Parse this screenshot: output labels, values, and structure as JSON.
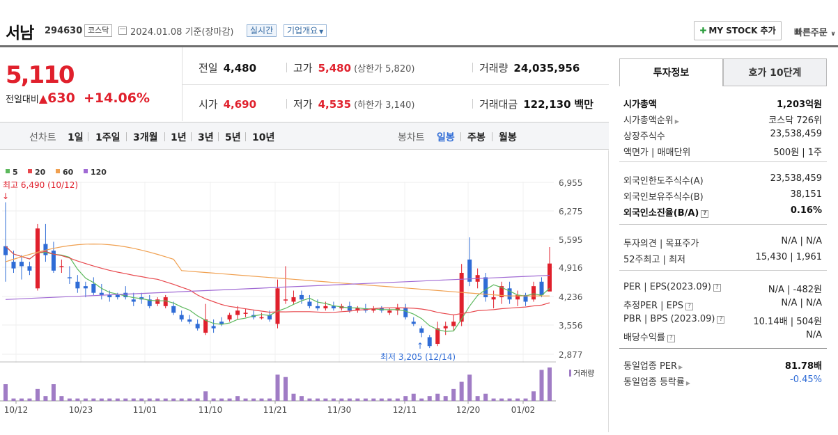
{
  "header": {
    "stock_name": "서남",
    "stock_code": "294630",
    "market": "코스닥",
    "date_text": "2024.01.08  기준(장마감)",
    "realtime_label": "실시간",
    "company_label": "기업개요",
    "mystock_label": "MY STOCK 추가",
    "quick_order_label": "빠른주문"
  },
  "price": {
    "current": "5,110",
    "change_label": "전일대비",
    "change_value": "630",
    "change_pct": "+14.06%"
  },
  "stats": {
    "prev_label": "전일",
    "prev_value": "4,480",
    "high_label": "고가",
    "high_value": "5,480",
    "upper_limit": "(상한가 5,820)",
    "volume_label": "거래량",
    "volume_value": "24,035,956",
    "open_label": "시가",
    "open_value": "4,690",
    "low_label": "저가",
    "low_value": "4,535",
    "lower_limit": "(하한가 3,140)",
    "amount_label": "거래대금",
    "amount_value": "122,130",
    "amount_unit": "백만"
  },
  "period_bar": {
    "line_title": "선차트",
    "line_opts": [
      "1일",
      "1주일",
      "3개월",
      "1년",
      "3년",
      "5년",
      "10년"
    ],
    "candle_title": "봉차트",
    "candle_opts": [
      "일봉",
      "주봉",
      "월봉"
    ],
    "candle_selected": "일봉"
  },
  "chart_data": {
    "type": "candlestick",
    "legend": [
      {
        "name": "5",
        "color": "#5cb85c"
      },
      {
        "name": "20",
        "color": "#e8484d"
      },
      {
        "name": "60",
        "color": "#f0a050"
      },
      {
        "name": "120",
        "color": "#a06ad4"
      }
    ],
    "y_ticks": [
      "6,955",
      "6,275",
      "5,595",
      "4,916",
      "4,236",
      "3,556",
      "2,877"
    ],
    "x_ticks": [
      "10/12",
      "10/23",
      "11/01",
      "11/10",
      "11/21",
      "11/30",
      "12/11",
      "12/20",
      "01/02"
    ],
    "high_annotation": "최고 6,490 (10/12)",
    "low_annotation": "최저 3,205 (12/14)",
    "volume_label": "거래량",
    "up_color": "#e0202c",
    "down_color": "#2f6cd6",
    "candles": [
      [
        5300,
        6490,
        5500,
        4700,
        "down"
      ],
      [
        5000,
        5400,
        5150,
        4900,
        "down"
      ],
      [
        5050,
        5300,
        5150,
        4750,
        "down"
      ],
      [
        4950,
        5150,
        5050,
        4850,
        "down"
      ],
      [
        4550,
        6000,
        5900,
        4500,
        "up"
      ],
      [
        5300,
        6000,
        5550,
        5150,
        "down"
      ],
      [
        5400,
        5600,
        4950,
        4900,
        "down"
      ],
      [
        5050,
        5200,
        5050,
        4900,
        "up"
      ],
      [
        4800,
        5050,
        4800,
        4650,
        "down"
      ],
      [
        4700,
        4850,
        4550,
        4450,
        "down"
      ],
      [
        4600,
        4700,
        4550,
        4350,
        "down"
      ],
      [
        4650,
        4800,
        4450,
        4400,
        "down"
      ],
      [
        4450,
        4650,
        4400,
        4300,
        "down"
      ],
      [
        4400,
        4500,
        4350,
        4250,
        "down"
      ],
      [
        4400,
        4450,
        4350,
        4300,
        "down"
      ],
      [
        4450,
        4600,
        4350,
        4300,
        "down"
      ],
      [
        4300,
        4450,
        4250,
        4150,
        "down"
      ],
      [
        4350,
        4450,
        4300,
        4200,
        "down"
      ],
      [
        4300,
        4400,
        4150,
        4100,
        "down"
      ],
      [
        4200,
        4350,
        4300,
        4150,
        "up"
      ],
      [
        4150,
        4400,
        4350,
        4100,
        "up"
      ],
      [
        4150,
        4250,
        4000,
        3950,
        "down"
      ],
      [
        3950,
        4050,
        3850,
        3800,
        "down"
      ],
      [
        3850,
        3950,
        3800,
        3750,
        "down"
      ],
      [
        3750,
        3850,
        3650,
        3600,
        "down"
      ],
      [
        3550,
        4200,
        3850,
        3500,
        "up"
      ],
      [
        3700,
        3850,
        3650,
        3550,
        "down"
      ],
      [
        3800,
        3900,
        3750,
        3700,
        "down"
      ],
      [
        3850,
        4000,
        3950,
        3800,
        "up"
      ],
      [
        3950,
        4150,
        4050,
        3850,
        "up"
      ],
      [
        4000,
        4100,
        4000,
        3900,
        "up"
      ],
      [
        3950,
        4050,
        3900,
        3850,
        "down"
      ],
      [
        3900,
        4000,
        3900,
        3850,
        "up"
      ],
      [
        3950,
        4050,
        3850,
        3800,
        "down"
      ],
      [
        3750,
        4750,
        4550,
        3650,
        "up"
      ],
      [
        4300,
        5050,
        4300,
        4200,
        "up"
      ],
      [
        4250,
        4500,
        4350,
        4200,
        "up"
      ],
      [
        4400,
        4500,
        4300,
        4200,
        "down"
      ],
      [
        4250,
        4400,
        4150,
        4100,
        "down"
      ],
      [
        4150,
        4300,
        4100,
        4050,
        "down"
      ],
      [
        4100,
        4250,
        4150,
        4050,
        "up"
      ],
      [
        4150,
        4250,
        4100,
        4050,
        "down"
      ],
      [
        4100,
        4200,
        4150,
        4050,
        "up"
      ],
      [
        4150,
        4250,
        4050,
        4000,
        "down"
      ],
      [
        4050,
        4150,
        4100,
        4000,
        "up"
      ],
      [
        4100,
        4200,
        4050,
        4000,
        "down"
      ],
      [
        4050,
        4150,
        4100,
        4000,
        "up"
      ],
      [
        4100,
        4150,
        4050,
        4000,
        "down"
      ],
      [
        4000,
        4100,
        4050,
        3950,
        "up"
      ],
      [
        4050,
        4200,
        4100,
        3950,
        "up"
      ],
      [
        4100,
        4200,
        3900,
        3850,
        "down"
      ],
      [
        3800,
        3900,
        3750,
        3700,
        "down"
      ],
      [
        3650,
        3700,
        3550,
        3450,
        "down"
      ],
      [
        3450,
        3500,
        3250,
        3205,
        "down"
      ],
      [
        3300,
        3800,
        3650,
        3250,
        "up"
      ],
      [
        3650,
        3800,
        3700,
        3500,
        "up"
      ],
      [
        3700,
        3950,
        3800,
        3600,
        "up"
      ],
      [
        3800,
        5100,
        4900,
        3700,
        "up"
      ],
      [
        5200,
        5700,
        4700,
        4600,
        "down"
      ],
      [
        4700,
        5000,
        4850,
        4550,
        "up"
      ],
      [
        4800,
        4900,
        4350,
        4250,
        "down"
      ],
      [
        4300,
        4500,
        4350,
        4100,
        "up"
      ],
      [
        4350,
        4700,
        4600,
        4200,
        "up"
      ],
      [
        4550,
        4700,
        4300,
        4200,
        "down"
      ],
      [
        4300,
        4500,
        4400,
        4150,
        "up"
      ],
      [
        4400,
        4450,
        4250,
        4150,
        "down"
      ],
      [
        4300,
        4700,
        4600,
        4250,
        "up"
      ],
      [
        4700,
        4800,
        4400,
        4350,
        "down"
      ],
      [
        4480,
        5480,
        5110,
        4535,
        "up"
      ]
    ],
    "volumes": [
      7,
      1,
      1,
      1,
      5,
      2,
      7,
      2,
      1,
      1,
      1,
      1,
      1,
      1,
      1,
      1,
      1,
      1,
      1,
      1,
      1,
      1,
      1,
      1,
      1,
      4,
      1,
      1,
      1,
      2,
      1,
      1,
      1,
      1,
      11,
      10,
      3,
      2,
      1,
      1,
      1,
      1,
      1,
      1,
      1,
      1,
      1,
      1,
      1,
      1,
      2,
      3,
      1,
      2,
      3,
      2,
      5,
      8,
      11,
      2,
      3,
      1,
      1,
      1,
      1,
      1,
      4,
      13,
      14
    ]
  },
  "side_panel": {
    "tab_active": "투자정보",
    "tab_other": "호가 10단계",
    "group1": [
      {
        "k": "시가총액",
        "v": "1,203억원",
        "bold": true
      },
      {
        "k": "시가총액순위",
        "v": "코스닥 726위",
        "caret": true
      },
      {
        "k": "상장주식수",
        "v": "23,538,459"
      },
      {
        "k": "액면가 | 매매단위",
        "v": "500원 | 1주"
      }
    ],
    "group2": [
      {
        "k": "외국인한도주식수(A)",
        "v": "23,538,459"
      },
      {
        "k": "외국인보유주식수(B)",
        "v": "38,151"
      },
      {
        "k": "외국인소진율(B/A)",
        "v": "0.16%",
        "bold": true,
        "q": true
      }
    ],
    "group3": [
      {
        "k": "투자의견 | 목표주가",
        "v": "N/A | N/A"
      },
      {
        "k": "52주최고 | 최저",
        "v": "15,430 | 1,961"
      }
    ],
    "group4": [
      {
        "k": "PER | EPS(2023.09)",
        "v": "N/A | -482원",
        "q": true
      },
      {
        "k": "추정PER | EPS",
        "v": "N/A | N/A",
        "q": true
      },
      {
        "k": "PBR | BPS (2023.09)",
        "v": "10.14배 | 504원",
        "q": true
      },
      {
        "k": "배당수익률",
        "v": "N/A",
        "q": true
      }
    ],
    "group5": [
      {
        "k": "동일업종 PER",
        "v": "81.78배",
        "caret": true,
        "vbold": true
      },
      {
        "k": "동일업종 등락률",
        "v": "-0.45%",
        "caret": true,
        "vblue": true
      }
    ]
  }
}
